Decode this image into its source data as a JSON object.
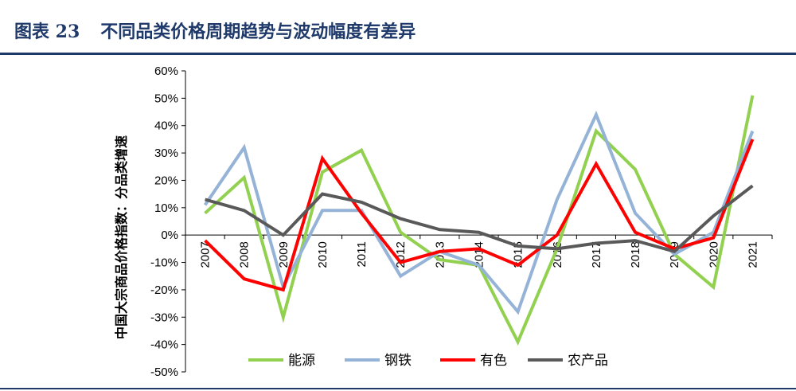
{
  "figure": {
    "number": "图表 23",
    "title": "不同品类价格周期趋势与波动幅度有差异"
  },
  "chart_data": {
    "type": "line",
    "ylabel": "中国大宗商品价格指数：分品类增速",
    "xlabel": "",
    "ylim": [
      -50,
      60
    ],
    "yticks": [
      -50,
      -40,
      -30,
      -20,
      -10,
      0,
      10,
      20,
      30,
      40,
      50,
      60
    ],
    "y_tick_suffix": "%",
    "x": [
      "2007",
      "2008",
      "2009",
      "2010",
      "2011",
      "2012",
      "2013",
      "2014",
      "2015",
      "2016",
      "2017",
      "2018",
      "2019",
      "2020",
      "2021"
    ],
    "grid": false,
    "legend_position": "bottom",
    "series": [
      {
        "name": "能源",
        "color": "#92d050",
        "values": [
          8,
          21,
          -30,
          23,
          31,
          1,
          -9,
          -11,
          -39,
          -5,
          38,
          24,
          -7,
          -19,
          51
        ]
      },
      {
        "name": "钢铁",
        "color": "#95b3d7",
        "values": [
          11,
          32,
          -19,
          9,
          9,
          -15,
          -6,
          -11,
          -28,
          13,
          44,
          8,
          -7,
          1,
          38
        ]
      },
      {
        "name": "有色",
        "color": "#ff0000",
        "values": [
          -2,
          -16,
          -20,
          28,
          8,
          -10,
          -6,
          -5,
          -11,
          0,
          26,
          1,
          -5,
          -1,
          35
        ]
      },
      {
        "name": "农产品",
        "color": "#595959",
        "values": [
          13,
          9,
          0,
          15,
          12,
          6,
          2,
          1,
          -4,
          -5,
          -3,
          -2,
          -6,
          7,
          18
        ]
      }
    ]
  }
}
